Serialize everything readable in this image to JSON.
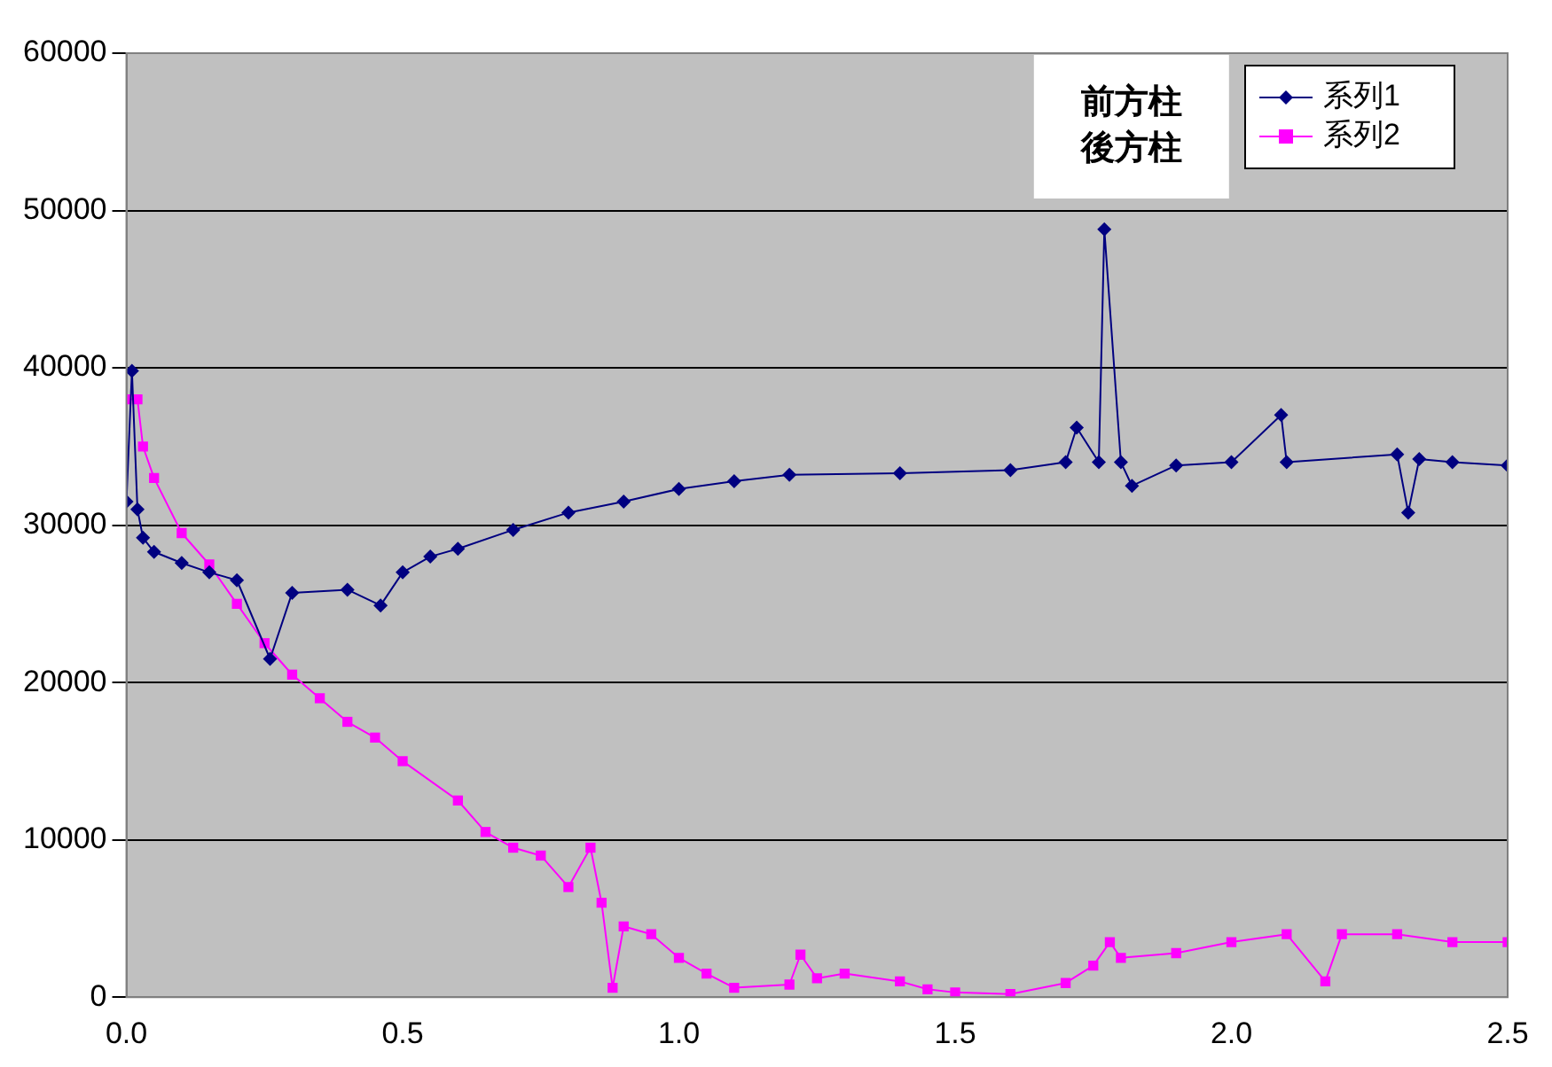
{
  "chart_data": {
    "type": "line",
    "xlim": [
      0,
      2.5
    ],
    "xticks": [
      {
        "value": 0,
        "label": "0.0"
      },
      {
        "value": 0.5,
        "label": "0.5"
      },
      {
        "value": 1,
        "label": "1.0"
      },
      {
        "value": 1.5,
        "label": "1.5"
      },
      {
        "value": 2,
        "label": "2.0"
      },
      {
        "value": 2.5,
        "label": "2.5"
      }
    ],
    "ylim": [
      0,
      60000
    ],
    "yticks": [
      0,
      10000,
      20000,
      30000,
      40000,
      50000,
      60000
    ],
    "grid": "y",
    "legend": "top right",
    "annotations": [
      "前方柱",
      "後方柱"
    ],
    "series": [
      {
        "name": "系列1",
        "color": "#000080",
        "marker": "diamond",
        "x": [
          0,
          0.01,
          0.02,
          0.03,
          0.05,
          0.1,
          0.15,
          0.2,
          0.26,
          0.3,
          0.4,
          0.46,
          0.5,
          0.55,
          0.6,
          0.7,
          0.8,
          0.9,
          1.0,
          1.1,
          1.2,
          1.4,
          1.6,
          1.7,
          1.72,
          1.76,
          1.77,
          1.8,
          1.82,
          1.9,
          2.0,
          2.09,
          2.1,
          2.3,
          2.32,
          2.34,
          2.4,
          2.5
        ],
        "values": [
          31500,
          39800,
          31000,
          29200,
          28300,
          27600,
          27000,
          26500,
          21500,
          25700,
          25900,
          24900,
          27000,
          28000,
          28500,
          29700,
          30800,
          31500,
          32300,
          32800,
          33200,
          33300,
          33500,
          34000,
          36200,
          34000,
          48800,
          34000,
          32500,
          33800,
          34000,
          37000,
          34000,
          34500,
          30800,
          34200,
          34000,
          33800
        ]
      },
      {
        "name": "系列2",
        "color": "#ff00ff",
        "marker": "square",
        "x": [
          0,
          0.02,
          0.03,
          0.05,
          0.1,
          0.15,
          0.2,
          0.25,
          0.3,
          0.35,
          0.4,
          0.45,
          0.5,
          0.6,
          0.65,
          0.7,
          0.75,
          0.8,
          0.84,
          0.86,
          0.88,
          0.9,
          0.95,
          1.0,
          1.05,
          1.1,
          1.2,
          1.22,
          1.25,
          1.3,
          1.4,
          1.45,
          1.5,
          1.6,
          1.7,
          1.75,
          1.78,
          1.8,
          1.9,
          2.0,
          2.1,
          2.17,
          2.2,
          2.3,
          2.4,
          2.5
        ],
        "values": [
          38000,
          38000,
          35000,
          33000,
          29500,
          27500,
          25000,
          22500,
          20500,
          19000,
          17500,
          16500,
          15000,
          12500,
          10500,
          9500,
          9000,
          7000,
          9500,
          6000,
          600,
          4500,
          4000,
          2500,
          1500,
          600,
          800,
          2700,
          1200,
          1500,
          1000,
          500,
          300,
          200,
          900,
          2000,
          3500,
          2500,
          2800,
          3500,
          4000,
          1000,
          4000,
          4000,
          3500,
          3500
        ]
      }
    ]
  }
}
